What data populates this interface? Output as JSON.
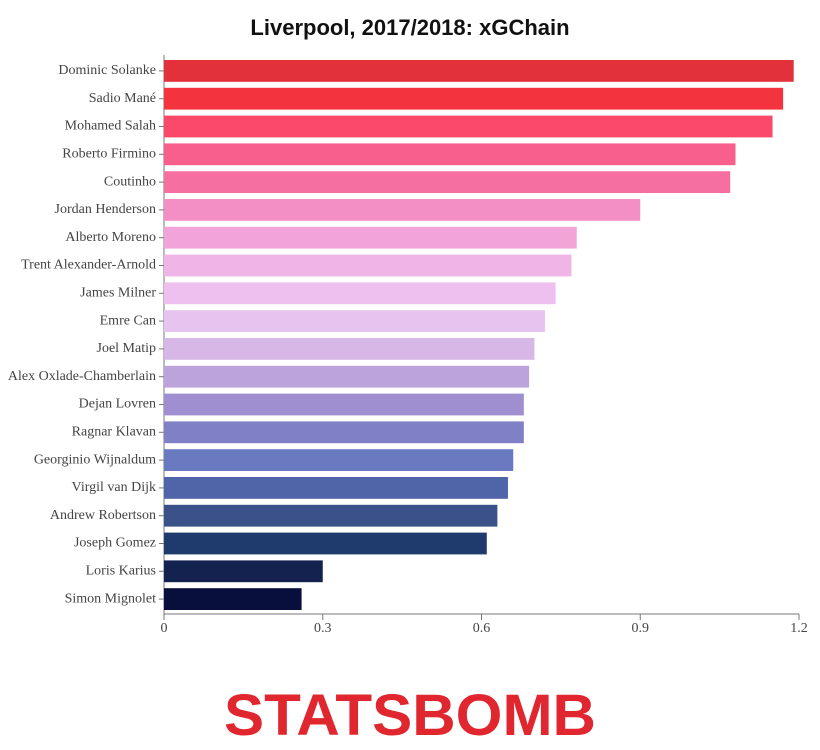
{
  "chart_data": {
    "type": "barh",
    "title": "Liverpool, 2017/2018: xGChain",
    "categories": [
      "Dominic Solanke",
      "Sadio Mané",
      "Mohamed Salah",
      "Roberto Firmino",
      "Coutinho",
      "Jordan Henderson",
      "Alberto Moreno",
      "Trent Alexander-Arnold",
      "James Milner",
      "Emre Can",
      "Joel Matip",
      "Alex Oxlade-Chamberlain",
      "Dejan Lovren",
      "Ragnar Klavan",
      "Georginio Wijnaldum",
      "Virgil van Dijk",
      "Andrew Robertson",
      "Joseph Gomez",
      "Loris Karius",
      "Simon Mignolet"
    ],
    "values": [
      1.19,
      1.17,
      1.15,
      1.08,
      1.07,
      0.9,
      0.78,
      0.77,
      0.74,
      0.72,
      0.7,
      0.69,
      0.68,
      0.68,
      0.66,
      0.65,
      0.63,
      0.61,
      0.3,
      0.26
    ],
    "colors": [
      "#e2313a",
      "#f3343f",
      "#fb4a69",
      "#f95f8c",
      "#f66fa1",
      "#f48fc6",
      "#f2a4d9",
      "#f0b4e6",
      "#eec0ef",
      "#e6c4ef",
      "#d6b7e6",
      "#bda3dc",
      "#9f8fd0",
      "#8080c6",
      "#6a7ac0",
      "#5064a8",
      "#3a5189",
      "#1f3a6c",
      "#13224f",
      "#090f3d"
    ],
    "xlim": [
      0,
      1.2
    ],
    "xticks": [
      0,
      0.3,
      0.6,
      0.9,
      1.2
    ],
    "logo": "STATSBOMB"
  }
}
